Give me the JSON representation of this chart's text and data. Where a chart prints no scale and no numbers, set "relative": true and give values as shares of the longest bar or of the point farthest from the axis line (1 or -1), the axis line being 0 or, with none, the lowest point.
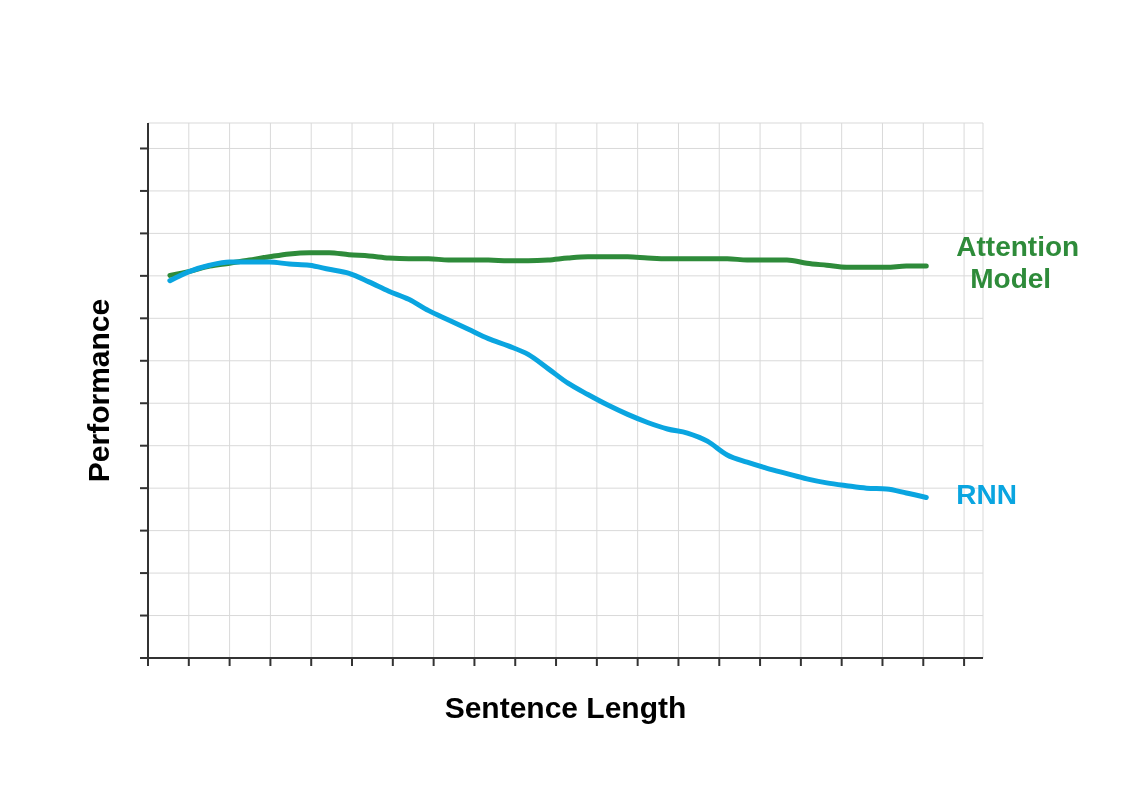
{
  "chart_data": {
    "type": "line",
    "xlabel": "Sentence Length",
    "ylabel": "Performance",
    "relative": true,
    "grid": true,
    "legend": false,
    "marker": "none",
    "line_style": "solid",
    "categories": [
      null,
      null,
      null,
      null,
      null,
      null,
      null,
      null,
      null,
      null,
      null,
      null,
      null,
      null,
      null,
      null,
      null,
      null,
      null,
      null,
      null,
      null,
      null,
      null,
      null,
      null,
      null,
      null,
      null,
      null,
      null,
      null,
      null,
      null,
      null,
      null,
      null,
      null,
      null
    ],
    "series": [
      {
        "name": "Attention Model",
        "color": "#2e8b3a",
        "values": [
          0.944,
          0.954,
          0.967,
          0.974,
          0.982,
          0.99,
          0.997,
          1,
          1,
          0.995,
          0.992,
          0.987,
          0.985,
          0.985,
          0.982,
          0.982,
          0.982,
          0.98,
          0.98,
          0.982,
          0.987,
          0.99,
          0.99,
          0.99,
          0.987,
          0.985,
          0.985,
          0.985,
          0.985,
          0.982,
          0.982,
          0.982,
          0.974,
          0.969,
          0.964,
          0.964,
          0.964,
          0.967,
          0.967
        ]
      },
      {
        "name": "RNN",
        "color": "#0aa5e0",
        "values": [
          0.931,
          0.954,
          0.969,
          0.977,
          0.977,
          0.977,
          0.972,
          0.969,
          0.959,
          0.949,
          0.928,
          0.905,
          0.885,
          0.857,
          0.834,
          0.811,
          0.788,
          0.77,
          0.749,
          0.714,
          0.678,
          0.65,
          0.624,
          0.601,
          0.581,
          0.565,
          0.555,
          0.535,
          0.501,
          0.483,
          0.468,
          0.455,
          0.442,
          0.432,
          0.425,
          0.419,
          0.417,
          0.407,
          0.396
        ]
      }
    ]
  }
}
